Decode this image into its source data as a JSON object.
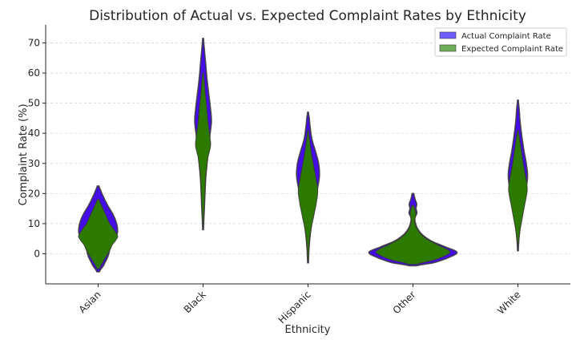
{
  "chart_data": {
    "type": "violin",
    "title": "Distribution of Actual vs. Expected Complaint Rates by Ethnicity",
    "xlabel": "Ethnicity",
    "ylabel": "Complaint Rate (%)",
    "categories": [
      "Asian",
      "Black",
      "Hispanic",
      "Other",
      "White"
    ],
    "ylim": [
      -10,
      76
    ],
    "yticks": [
      0,
      10,
      20,
      30,
      40,
      50,
      60,
      70
    ],
    "grid": true,
    "legend_position": "top-right",
    "series": [
      {
        "name": "Actual Complaint Rate",
        "color": "#3a00e6",
        "violins": [
          {
            "min": -6,
            "max": 22.5,
            "profile": [
              [
                -6,
                0.03
              ],
              [
                -4,
                0.12
              ],
              [
                -1,
                0.22
              ],
              [
                2,
                0.28
              ],
              [
                5,
                0.38
              ],
              [
                7,
                0.44
              ],
              [
                10,
                0.42
              ],
              [
                13,
                0.34
              ],
              [
                16,
                0.22
              ],
              [
                19,
                0.12
              ],
              [
                21,
                0.06
              ],
              [
                22.5,
                0.02
              ]
            ]
          },
          {
            "min": 8,
            "max": 71.5,
            "profile": [
              [
                8,
                0.01
              ],
              [
                15,
                0.03
              ],
              [
                25,
                0.06
              ],
              [
                33,
                0.11
              ],
              [
                40,
                0.16
              ],
              [
                44,
                0.19
              ],
              [
                48,
                0.17
              ],
              [
                53,
                0.13
              ],
              [
                58,
                0.09
              ],
              [
                63,
                0.06
              ],
              [
                68,
                0.03
              ],
              [
                71.5,
                0.01
              ]
            ]
          },
          {
            "min": -3,
            "max": 47,
            "profile": [
              [
                -3,
                0.01
              ],
              [
                3,
                0.03
              ],
              [
                10,
                0.08
              ],
              [
                17,
                0.16
              ],
              [
                22,
                0.22
              ],
              [
                26,
                0.26
              ],
              [
                30,
                0.24
              ],
              [
                34,
                0.17
              ],
              [
                38,
                0.09
              ],
              [
                42,
                0.05
              ],
              [
                45,
                0.03
              ],
              [
                47,
                0.01
              ]
            ]
          },
          {
            "min": -4,
            "max": 20,
            "profile": [
              [
                -4,
                0.08
              ],
              [
                -3,
                0.48
              ],
              [
                -1,
                0.85
              ],
              [
                0.5,
                1.0
              ],
              [
                2,
                0.78
              ],
              [
                4,
                0.45
              ],
              [
                6,
                0.24
              ],
              [
                8,
                0.12
              ],
              [
                10,
                0.06
              ],
              [
                12,
                0.045
              ],
              [
                13.5,
                0.09
              ],
              [
                15,
                0.07
              ],
              [
                16.5,
                0.085
              ],
              [
                18,
                0.05
              ],
              [
                20,
                0.02
              ]
            ]
          },
          {
            "min": 1,
            "max": 51,
            "profile": [
              [
                1,
                0.01
              ],
              [
                6,
                0.03
              ],
              [
                12,
                0.08
              ],
              [
                17,
                0.14
              ],
              [
                22,
                0.19
              ],
              [
                26,
                0.22
              ],
              [
                30,
                0.19
              ],
              [
                34,
                0.14
              ],
              [
                39,
                0.09
              ],
              [
                44,
                0.05
              ],
              [
                48,
                0.03
              ],
              [
                51,
                0.01
              ]
            ]
          }
        ]
      },
      {
        "name": "Expected Complaint Rate",
        "color": "#2d7a00",
        "violins": [
          {
            "min": -5,
            "max": 18,
            "profile": [
              [
                -5,
                0.03
              ],
              [
                -3,
                0.1
              ],
              [
                0,
                0.22
              ],
              [
                3,
                0.32
              ],
              [
                5,
                0.42
              ],
              [
                6,
                0.44
              ],
              [
                8,
                0.36
              ],
              [
                10,
                0.26
              ],
              [
                13,
                0.17
              ],
              [
                16,
                0.08
              ],
              [
                18,
                0.02
              ]
            ]
          },
          {
            "min": 10,
            "max": 60,
            "profile": [
              [
                10,
                0.01
              ],
              [
                18,
                0.035
              ],
              [
                26,
                0.06
              ],
              [
                32,
                0.11
              ],
              [
                36,
                0.17
              ],
              [
                39,
                0.15
              ],
              [
                44,
                0.11
              ],
              [
                49,
                0.08
              ],
              [
                53,
                0.05
              ],
              [
                57,
                0.03
              ],
              [
                60,
                0.01
              ]
            ]
          },
          {
            "min": -2,
            "max": 41,
            "profile": [
              [
                -2,
                0.01
              ],
              [
                4,
                0.03
              ],
              [
                9,
                0.08
              ],
              [
                14,
                0.15
              ],
              [
                18,
                0.2
              ],
              [
                21,
                0.22
              ],
              [
                25,
                0.18
              ],
              [
                29,
                0.13
              ],
              [
                33,
                0.08
              ],
              [
                37,
                0.04
              ],
              [
                41,
                0.01
              ]
            ]
          },
          {
            "min": -3.5,
            "max": 16,
            "profile": [
              [
                -3.5,
                0.1
              ],
              [
                -2,
                0.5
              ],
              [
                0,
                0.8
              ],
              [
                1,
                0.82
              ],
              [
                3,
                0.55
              ],
              [
                5,
                0.3
              ],
              [
                7,
                0.15
              ],
              [
                9,
                0.07
              ],
              [
                11,
                0.035
              ],
              [
                13,
                0.065
              ],
              [
                14.5,
                0.05
              ],
              [
                16,
                0.02
              ]
            ]
          },
          {
            "min": 3,
            "max": 41,
            "profile": [
              [
                3,
                0.01
              ],
              [
                8,
                0.05
              ],
              [
                12,
                0.1
              ],
              [
                16,
                0.15
              ],
              [
                20,
                0.2
              ],
              [
                22,
                0.21
              ],
              [
                26,
                0.17
              ],
              [
                30,
                0.12
              ],
              [
                34,
                0.08
              ],
              [
                38,
                0.04
              ],
              [
                41,
                0.01
              ]
            ]
          }
        ]
      }
    ]
  }
}
